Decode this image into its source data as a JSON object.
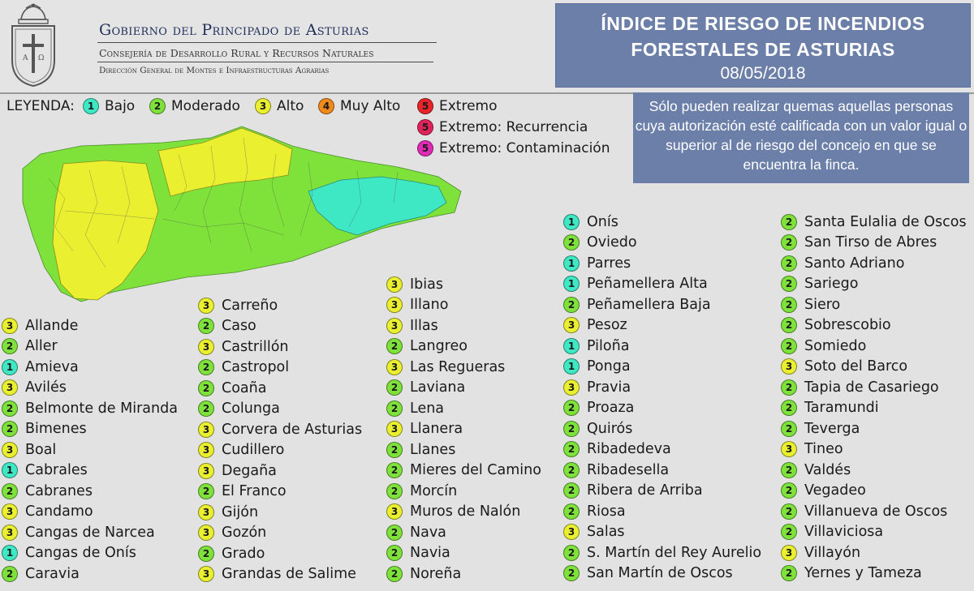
{
  "header": {
    "gov_title": "Gobierno del Principado de Asturias",
    "gov_sub1": "Consejería de Desarrollo Rural y Recursos Naturales",
    "gov_sub2": "Dirección General de Montes e Infraestructuras Agrarias",
    "title_line1": "ÍNDICE DE RIESGO DE INCENDIOS",
    "title_line2": "FORESTALES DE ASTURIAS",
    "date": "08/05/2018"
  },
  "legend": {
    "label": "LEYENDA:",
    "items": [
      {
        "level": "1",
        "label": "Bajo",
        "color": "#3fe8c4"
      },
      {
        "level": "2",
        "label": "Moderado",
        "color": "#7ee23a"
      },
      {
        "level": "3",
        "label": "Alto",
        "color": "#eaf030"
      },
      {
        "level": "4",
        "label": "Muy Alto",
        "color": "#f08a1c"
      },
      {
        "level": "5",
        "label": "Extremo",
        "color": "#e8232a"
      },
      {
        "level": "5",
        "label": "Extremo: Recurrencia",
        "color": "#e0245a"
      },
      {
        "level": "5",
        "label": "Extremo: Contaminación",
        "color": "#e02cb4"
      }
    ]
  },
  "notice": "Sólo pueden realizar quemas aquellas personas cuya autorización esté calificada con un valor igual o superior al de riesgo del concejo en que se encuentra la finca.",
  "colors": {
    "1": "#3fe8c4",
    "2": "#7ee23a",
    "3": "#eaf030",
    "4": "#f08a1c",
    "5": "#e8232a"
  },
  "columns": [
    [
      {
        "name": "Allande",
        "level": "3"
      },
      {
        "name": "Aller",
        "level": "2"
      },
      {
        "name": "Amieva",
        "level": "1"
      },
      {
        "name": "Avilés",
        "level": "3"
      },
      {
        "name": "Belmonte de Miranda",
        "level": "2"
      },
      {
        "name": "Bimenes",
        "level": "2"
      },
      {
        "name": "Boal",
        "level": "3"
      },
      {
        "name": "Cabrales",
        "level": "1"
      },
      {
        "name": "Cabranes",
        "level": "2"
      },
      {
        "name": "Candamo",
        "level": "3"
      },
      {
        "name": "Cangas de Narcea",
        "level": "3"
      },
      {
        "name": "Cangas de Onís",
        "level": "1"
      },
      {
        "name": "Caravia",
        "level": "2"
      }
    ],
    [
      {
        "name": "Carreño",
        "level": "3"
      },
      {
        "name": "Caso",
        "level": "2"
      },
      {
        "name": "Castrillón",
        "level": "3"
      },
      {
        "name": "Castropol",
        "level": "2"
      },
      {
        "name": "Coaña",
        "level": "2"
      },
      {
        "name": "Colunga",
        "level": "2"
      },
      {
        "name": "Corvera de Asturias",
        "level": "3"
      },
      {
        "name": "Cudillero",
        "level": "3"
      },
      {
        "name": "Degaña",
        "level": "3"
      },
      {
        "name": "El Franco",
        "level": "2"
      },
      {
        "name": "Gijón",
        "level": "3"
      },
      {
        "name": "Gozón",
        "level": "3"
      },
      {
        "name": "Grado",
        "level": "2"
      },
      {
        "name": "Grandas de Salime",
        "level": "3"
      }
    ],
    [
      {
        "name": "Ibias",
        "level": "3"
      },
      {
        "name": "Illano",
        "level": "3"
      },
      {
        "name": "Illas",
        "level": "3"
      },
      {
        "name": "Langreo",
        "level": "2"
      },
      {
        "name": "Las Regueras",
        "level": "3"
      },
      {
        "name": "Laviana",
        "level": "2"
      },
      {
        "name": "Lena",
        "level": "2"
      },
      {
        "name": "Llanera",
        "level": "3"
      },
      {
        "name": "Llanes",
        "level": "2"
      },
      {
        "name": "Mieres del Camino",
        "level": "2"
      },
      {
        "name": "Morcín",
        "level": "2"
      },
      {
        "name": "Muros de Nalón",
        "level": "3"
      },
      {
        "name": "Nava",
        "level": "2"
      },
      {
        "name": "Navia",
        "level": "2"
      },
      {
        "name": "Noreña",
        "level": "2"
      }
    ],
    [
      {
        "name": "Onís",
        "level": "1"
      },
      {
        "name": "Oviedo",
        "level": "2"
      },
      {
        "name": "Parres",
        "level": "1"
      },
      {
        "name": "Peñamellera Alta",
        "level": "1"
      },
      {
        "name": "Peñamellera Baja",
        "level": "2"
      },
      {
        "name": "Pesoz",
        "level": "3"
      },
      {
        "name": "Piloña",
        "level": "1"
      },
      {
        "name": "Ponga",
        "level": "1"
      },
      {
        "name": "Pravia",
        "level": "3"
      },
      {
        "name": "Proaza",
        "level": "2"
      },
      {
        "name": "Quirós",
        "level": "2"
      },
      {
        "name": "Ribadedeva",
        "level": "2"
      },
      {
        "name": "Ribadesella",
        "level": "2"
      },
      {
        "name": "Ribera de Arriba",
        "level": "2"
      },
      {
        "name": "Riosa",
        "level": "2"
      },
      {
        "name": "Salas",
        "level": "3"
      },
      {
        "name": "S. Martín del Rey Aurelio",
        "level": "2"
      },
      {
        "name": "San Martín de Oscos",
        "level": "2"
      }
    ],
    [
      {
        "name": "Santa Eulalia de Oscos",
        "level": "2"
      },
      {
        "name": "San Tirso de Abres",
        "level": "2"
      },
      {
        "name": "Santo Adriano",
        "level": "2"
      },
      {
        "name": "Sariego",
        "level": "2"
      },
      {
        "name": "Siero",
        "level": "2"
      },
      {
        "name": "Sobrescobio",
        "level": "2"
      },
      {
        "name": "Somiedo",
        "level": "2"
      },
      {
        "name": "Soto del Barco",
        "level": "3"
      },
      {
        "name": "Tapia de Casariego",
        "level": "2"
      },
      {
        "name": "Taramundi",
        "level": "2"
      },
      {
        "name": "Teverga",
        "level": "2"
      },
      {
        "name": "Tineo",
        "level": "3"
      },
      {
        "name": "Valdés",
        "level": "2"
      },
      {
        "name": "Vegadeo",
        "level": "2"
      },
      {
        "name": "Villanueva de Oscos",
        "level": "2"
      },
      {
        "name": "Villaviciosa",
        "level": "2"
      },
      {
        "name": "Villayón",
        "level": "3"
      },
      {
        "name": "Yernes y Tameza",
        "level": "2"
      }
    ]
  ]
}
